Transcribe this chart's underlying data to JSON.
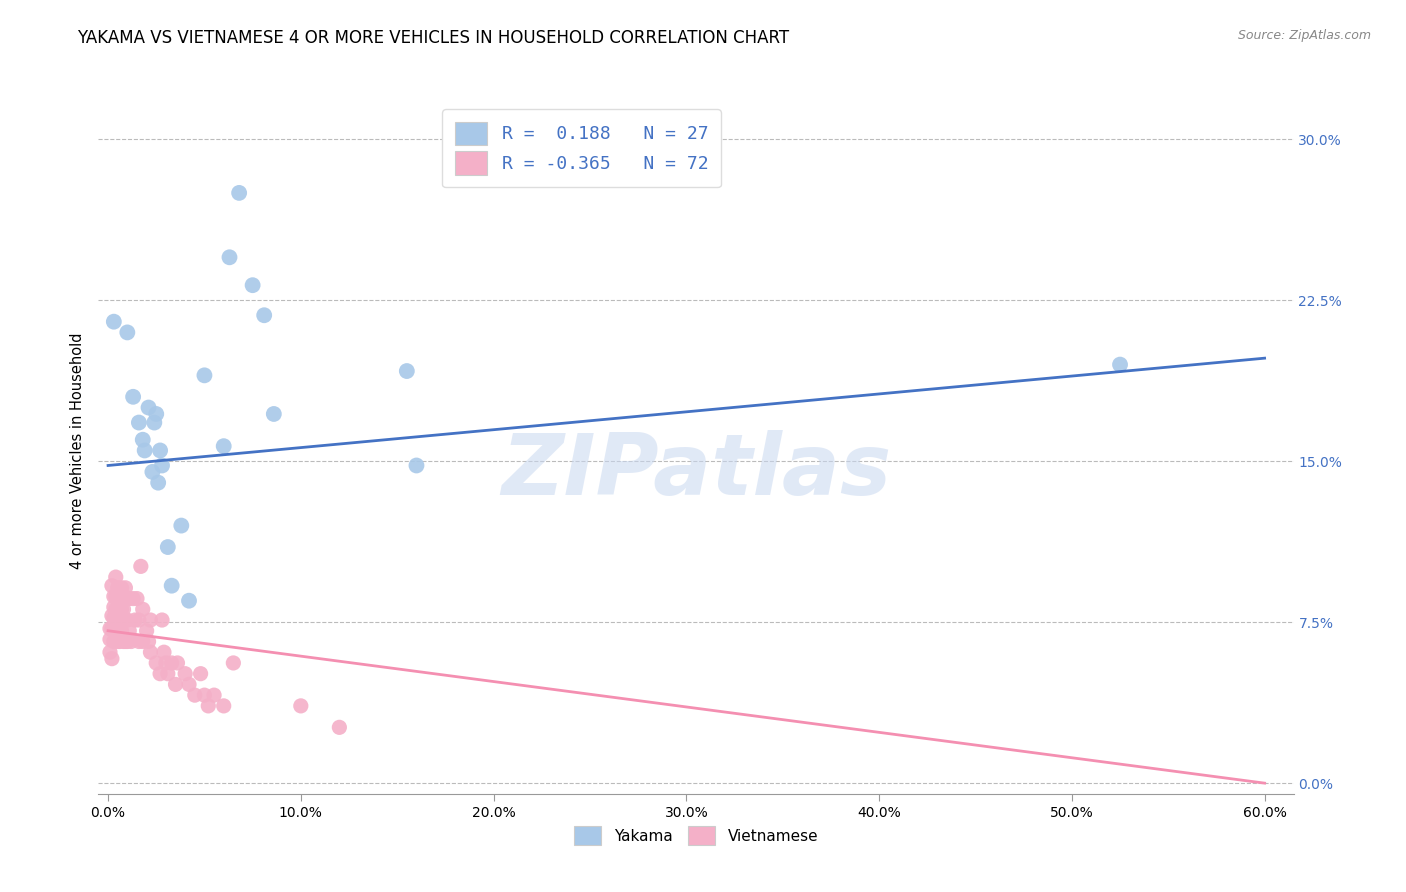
{
  "title": "YAKAMA VS VIETNAMESE 4 OR MORE VEHICLES IN HOUSEHOLD CORRELATION CHART",
  "source": "Source: ZipAtlas.com",
  "ylabel": "4 or more Vehicles in Household",
  "x_ticks": [
    0.0,
    0.1,
    0.2,
    0.3,
    0.4,
    0.5,
    0.6
  ],
  "x_tick_labels": [
    "0.0%",
    "10.0%",
    "20.0%",
    "30.0%",
    "40.0%",
    "50.0%",
    "60.0%"
  ],
  "y_ticks": [
    0.0,
    0.075,
    0.15,
    0.225,
    0.3
  ],
  "y_tick_labels": [
    "0.0%",
    "7.5%",
    "15.0%",
    "22.5%",
    "30.0%"
  ],
  "xlim": [
    -0.005,
    0.615
  ],
  "ylim": [
    -0.005,
    0.315
  ],
  "yakama_R": 0.188,
  "yakama_N": 27,
  "vietnamese_R": -0.365,
  "vietnamese_N": 72,
  "yakama_color": "#a8c8e8",
  "vietnamese_color": "#f4b0c8",
  "yakama_line_color": "#4472c4",
  "vietnamese_line_color": "#f48fb1",
  "background_color": "#ffffff",
  "grid_color": "#bbbbbb",
  "watermark": "ZIPatlas",
  "legend_labels": [
    "Yakama",
    "Vietnamese"
  ],
  "yakama_line_x0": 0.0,
  "yakama_line_y0": 0.148,
  "yakama_line_x1": 0.6,
  "yakama_line_y1": 0.198,
  "vietnamese_line_x0": 0.0,
  "vietnamese_line_y0": 0.071,
  "vietnamese_line_x1": 0.6,
  "vietnamese_line_y1": 0.0,
  "yakama_x": [
    0.003,
    0.01,
    0.013,
    0.016,
    0.018,
    0.019,
    0.021,
    0.023,
    0.024,
    0.025,
    0.026,
    0.027,
    0.028,
    0.031,
    0.033,
    0.038,
    0.042,
    0.05,
    0.06,
    0.063,
    0.068,
    0.075,
    0.081,
    0.086,
    0.155,
    0.16,
    0.525
  ],
  "yakama_y": [
    0.215,
    0.21,
    0.18,
    0.168,
    0.16,
    0.155,
    0.175,
    0.145,
    0.168,
    0.172,
    0.14,
    0.155,
    0.148,
    0.11,
    0.092,
    0.12,
    0.085,
    0.19,
    0.157,
    0.245,
    0.275,
    0.232,
    0.218,
    0.172,
    0.192,
    0.148,
    0.195
  ],
  "vietnamese_x": [
    0.001,
    0.001,
    0.001,
    0.002,
    0.002,
    0.002,
    0.002,
    0.003,
    0.003,
    0.003,
    0.003,
    0.003,
    0.004,
    0.004,
    0.004,
    0.004,
    0.005,
    0.005,
    0.005,
    0.005,
    0.006,
    0.006,
    0.006,
    0.006,
    0.007,
    0.007,
    0.007,
    0.008,
    0.008,
    0.008,
    0.008,
    0.009,
    0.009,
    0.009,
    0.01,
    0.01,
    0.01,
    0.011,
    0.011,
    0.012,
    0.013,
    0.014,
    0.015,
    0.016,
    0.016,
    0.017,
    0.018,
    0.018,
    0.02,
    0.021,
    0.022,
    0.022,
    0.025,
    0.027,
    0.028,
    0.029,
    0.03,
    0.031,
    0.033,
    0.035,
    0.036,
    0.04,
    0.042,
    0.045,
    0.048,
    0.05,
    0.052,
    0.055,
    0.06,
    0.065,
    0.1,
    0.12
  ],
  "vietnamese_y": [
    0.072,
    0.067,
    0.061,
    0.092,
    0.078,
    0.072,
    0.058,
    0.087,
    0.082,
    0.077,
    0.071,
    0.066,
    0.096,
    0.087,
    0.081,
    0.071,
    0.091,
    0.086,
    0.076,
    0.066,
    0.086,
    0.081,
    0.076,
    0.066,
    0.091,
    0.081,
    0.071,
    0.087,
    0.081,
    0.076,
    0.066,
    0.091,
    0.076,
    0.066,
    0.086,
    0.076,
    0.066,
    0.086,
    0.071,
    0.066,
    0.086,
    0.076,
    0.086,
    0.076,
    0.066,
    0.101,
    0.081,
    0.066,
    0.071,
    0.066,
    0.076,
    0.061,
    0.056,
    0.051,
    0.076,
    0.061,
    0.056,
    0.051,
    0.056,
    0.046,
    0.056,
    0.051,
    0.046,
    0.041,
    0.051,
    0.041,
    0.036,
    0.041,
    0.036,
    0.056,
    0.036,
    0.026
  ]
}
